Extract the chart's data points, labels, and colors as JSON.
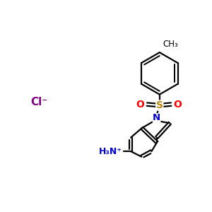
{
  "bg_color": "#ffffff",
  "bond_color": "#000000",
  "bond_width": 1.6,
  "S_color": "#b8860b",
  "O_color": "#ff0000",
  "N_color": "#0000cc",
  "Cl_color": "#800080",
  "CH3_text": "CH₃",
  "Cl_text": "Cl⁻",
  "NH3_text": "H₃N⁺",
  "S_text": "S",
  "O_text": "O",
  "N_text": "N"
}
